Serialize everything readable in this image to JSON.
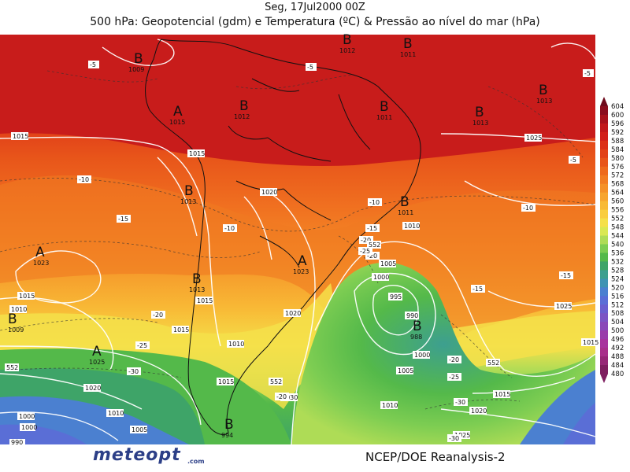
{
  "title_line1": "Seg, 17Jul2000 00Z",
  "title_line2": "500 hPa: Geopotencial (gdm) e Temperatura (ºC) & Pressão ao nível do mar (hPa)",
  "logo_text": "meteopt",
  "logo_domain": ".com",
  "source": "NCEP/DOE Reanalysis-2",
  "colorbar": {
    "levels": [
      "604",
      "600",
      "596",
      "592",
      "588",
      "584",
      "580",
      "576",
      "572",
      "568",
      "564",
      "560",
      "556",
      "552",
      "548",
      "544",
      "540",
      "536",
      "532",
      "528",
      "524",
      "520",
      "516",
      "512",
      "508",
      "504",
      "500",
      "496",
      "492",
      "488",
      "484",
      "480"
    ],
    "colors": [
      "#6e0a1c",
      "#8b0d1e",
      "#a8121c",
      "#c2181b",
      "#d21f1a",
      "#dc3018",
      "#e24218",
      "#e8551a",
      "#ee6a1d",
      "#f27d22",
      "#f59128",
      "#f7a52f",
      "#f8ba36",
      "#f9cd3f",
      "#f5e04a",
      "#d9e852",
      "#aedc56",
      "#7dcd52",
      "#54b94a",
      "#3ea468",
      "#3d9f8f",
      "#3f93b3",
      "#4b80d0",
      "#5a6ed6",
      "#6a5fcf",
      "#7c54c4",
      "#8a48b8",
      "#9a3dab",
      "#a8339d",
      "#a82f8a",
      "#962776",
      "#7e1e5f"
    ]
  },
  "lows": [
    {
      "symbol": "B",
      "value": "1009"
    },
    {
      "symbol": "B",
      "value": "1012"
    },
    {
      "symbol": "B",
      "value": "1013"
    },
    {
      "symbol": "B",
      "value": "1013"
    },
    {
      "symbol": "B",
      "value": "1009"
    },
    {
      "symbol": "B",
      "value": "1011"
    },
    {
      "symbol": "B",
      "value": "1011"
    },
    {
      "symbol": "B",
      "value": "988"
    },
    {
      "symbol": "B",
      "value": "994"
    },
    {
      "symbol": "B",
      "value": "1012"
    },
    {
      "symbol": "B",
      "value": "1011"
    },
    {
      "symbol": "B",
      "value": "1013"
    },
    {
      "symbol": "B",
      "value": "1013"
    }
  ],
  "highs": [
    {
      "symbol": "A",
      "value": "1015"
    },
    {
      "symbol": "A",
      "value": "1023"
    },
    {
      "symbol": "A",
      "value": "1023"
    },
    {
      "symbol": "A",
      "value": "1025"
    }
  ],
  "isobar_labels": [
    "1015",
    "1015",
    "1020",
    "1015",
    "1010",
    "1015",
    "1010",
    "1015",
    "1020",
    "1025",
    "1020",
    "1010",
    "1005",
    "1000",
    "995",
    "990",
    "1000",
    "1005",
    "1010",
    "1015",
    "1020",
    "1025",
    "1030",
    "1010",
    "1015",
    "1025",
    "1015",
    "1000",
    "990",
    "985",
    "1005",
    "1010",
    "1015",
    "1020",
    "1025",
    "1000"
  ],
  "temperature_labels": [
    "-5",
    "-5",
    "-5",
    "-5",
    "-10",
    "-15",
    "-10",
    "-10",
    "-15",
    "-20",
    "-20",
    "-25",
    "-30",
    "-20",
    "-15",
    "-20",
    "-25",
    "-10",
    "-15",
    "-20",
    "-25",
    "-30",
    "-30",
    "-15",
    "-5",
    "-5"
  ],
  "geopotential_labels": [
    "552",
    "552",
    "552",
    "552"
  ]
}
